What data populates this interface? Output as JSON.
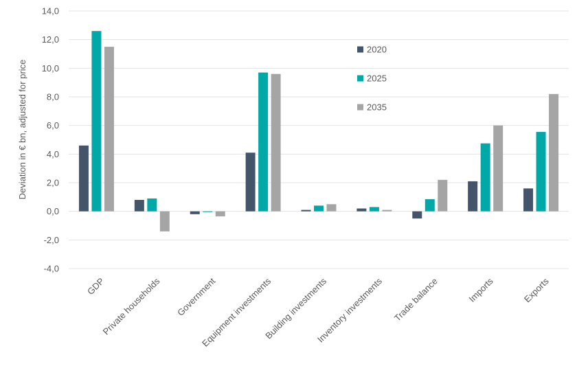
{
  "chart_data": {
    "type": "bar",
    "ylabel": "Deviation in € bn, adjusted for price",
    "ylim": [
      -4,
      14
    ],
    "yticks": [
      -4,
      -2,
      0,
      2,
      4,
      6,
      8,
      10,
      12,
      14
    ],
    "ytick_labels": [
      "-4,0",
      "-2,0",
      "0,0",
      "2,0",
      "4,0",
      "6,0",
      "8,0",
      "10,0",
      "12,0",
      "14,0"
    ],
    "grid": true,
    "legend_position": "upper-middle",
    "categories": [
      "GDP",
      "Private households",
      "Government",
      "Equipment investments",
      "Building investments",
      "Inventory investments",
      "Trade balance",
      "Imports",
      "Exports"
    ],
    "series": [
      {
        "name": "2020",
        "color": "#44546A",
        "values": [
          4.6,
          0.8,
          -0.2,
          4.1,
          0.1,
          0.2,
          -0.5,
          2.1,
          1.6
        ]
      },
      {
        "name": "2025",
        "color": "#00A8A8",
        "values": [
          12.6,
          0.9,
          -0.05,
          9.7,
          0.4,
          0.3,
          0.85,
          4.75,
          5.55
        ]
      },
      {
        "name": "2035",
        "color": "#A5A5A5",
        "values": [
          11.5,
          -1.4,
          -0.35,
          9.6,
          0.5,
          0.1,
          2.2,
          6.0,
          8.2
        ]
      }
    ]
  }
}
